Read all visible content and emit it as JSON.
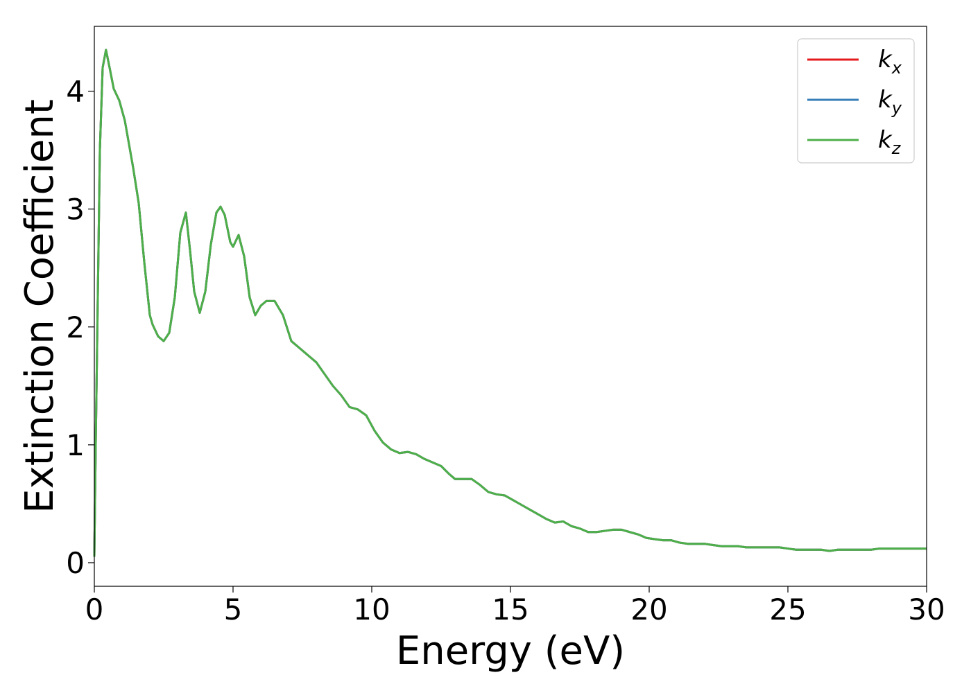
{
  "chart_data": {
    "type": "line",
    "xlabel": "Energy (eV)",
    "ylabel": "Extinction Coefficient",
    "xlim": [
      0,
      30
    ],
    "ylim": [
      -0.2,
      4.55
    ],
    "xticks": [
      "0",
      "5",
      "10",
      "15",
      "20",
      "25",
      "30"
    ],
    "yticks": [
      "0",
      "1",
      "2",
      "3",
      "4"
    ],
    "grid": false,
    "legend_position": "top-right",
    "legend": [
      {
        "base": "k",
        "sub": "x",
        "color": "#e41a1c"
      },
      {
        "base": "k",
        "sub": "y",
        "color": "#377eb8"
      },
      {
        "base": "k",
        "sub": "z",
        "color": "#4daf4a"
      }
    ],
    "x": [
      0,
      0.05,
      0.2,
      0.3,
      0.42,
      0.55,
      0.7,
      0.9,
      1.1,
      1.4,
      1.6,
      1.8,
      2.0,
      2.1,
      2.3,
      2.5,
      2.7,
      2.9,
      3.1,
      3.3,
      3.45,
      3.6,
      3.8,
      4.0,
      4.2,
      4.4,
      4.55,
      4.7,
      4.9,
      5.0,
      5.2,
      5.4,
      5.6,
      5.8,
      6.0,
      6.2,
      6.5,
      6.8,
      7.1,
      7.4,
      7.7,
      8.0,
      8.3,
      8.6,
      8.9,
      9.2,
      9.5,
      9.8,
      10.1,
      10.4,
      10.7,
      11.0,
      11.3,
      11.6,
      11.9,
      12.2,
      12.5,
      12.8,
      13.0,
      13.3,
      13.6,
      13.9,
      14.2,
      14.5,
      14.8,
      15.1,
      15.4,
      15.7,
      16.0,
      16.3,
      16.6,
      16.9,
      17.2,
      17.5,
      17.8,
      18.1,
      18.4,
      18.7,
      19.0,
      19.3,
      19.6,
      19.9,
      20.2,
      20.5,
      20.8,
      21.1,
      21.4,
      21.7,
      22.0,
      22.3,
      22.6,
      22.9,
      23.2,
      23.5,
      23.8,
      24.1,
      24.4,
      24.7,
      25.0,
      25.3,
      25.6,
      25.9,
      26.2,
      26.5,
      26.8,
      27.1,
      27.4,
      27.7,
      28.0,
      28.3,
      28.6,
      28.9,
      29.2,
      29.5,
      29.8,
      30.0
    ],
    "series": [
      {
        "name": "k_x",
        "color": "#e41a1c",
        "values": [
          0.05,
          1.0,
          3.5,
          4.2,
          4.35,
          4.2,
          4.02,
          3.92,
          3.75,
          3.35,
          3.05,
          2.55,
          2.1,
          2.02,
          1.92,
          1.88,
          1.95,
          2.25,
          2.8,
          2.97,
          2.65,
          2.3,
          2.12,
          2.3,
          2.7,
          2.97,
          3.02,
          2.95,
          2.72,
          2.68,
          2.78,
          2.6,
          2.25,
          2.1,
          2.18,
          2.22,
          2.22,
          2.1,
          1.88,
          1.82,
          1.76,
          1.7,
          1.6,
          1.5,
          1.42,
          1.32,
          1.3,
          1.25,
          1.12,
          1.02,
          0.96,
          0.93,
          0.94,
          0.92,
          0.88,
          0.85,
          0.82,
          0.75,
          0.71,
          0.71,
          0.71,
          0.66,
          0.6,
          0.58,
          0.57,
          0.53,
          0.49,
          0.45,
          0.41,
          0.37,
          0.34,
          0.35,
          0.31,
          0.29,
          0.26,
          0.26,
          0.27,
          0.28,
          0.28,
          0.26,
          0.24,
          0.21,
          0.2,
          0.19,
          0.19,
          0.17,
          0.16,
          0.16,
          0.16,
          0.15,
          0.14,
          0.14,
          0.14,
          0.13,
          0.13,
          0.13,
          0.13,
          0.13,
          0.12,
          0.11,
          0.11,
          0.11,
          0.11,
          0.1,
          0.11,
          0.11,
          0.11,
          0.11,
          0.11,
          0.12,
          0.12,
          0.12,
          0.12,
          0.12,
          0.12,
          0.12
        ]
      },
      {
        "name": "k_y",
        "color": "#377eb8",
        "values": [
          0.05,
          1.0,
          3.5,
          4.2,
          4.35,
          4.2,
          4.02,
          3.92,
          3.75,
          3.35,
          3.05,
          2.55,
          2.1,
          2.02,
          1.92,
          1.88,
          1.95,
          2.25,
          2.8,
          2.97,
          2.65,
          2.3,
          2.12,
          2.3,
          2.7,
          2.97,
          3.02,
          2.95,
          2.72,
          2.68,
          2.78,
          2.6,
          2.25,
          2.1,
          2.18,
          2.22,
          2.22,
          2.1,
          1.88,
          1.82,
          1.76,
          1.7,
          1.6,
          1.5,
          1.42,
          1.32,
          1.3,
          1.25,
          1.12,
          1.02,
          0.96,
          0.93,
          0.94,
          0.92,
          0.88,
          0.85,
          0.82,
          0.75,
          0.71,
          0.71,
          0.71,
          0.66,
          0.6,
          0.58,
          0.57,
          0.53,
          0.49,
          0.45,
          0.41,
          0.37,
          0.34,
          0.35,
          0.31,
          0.29,
          0.26,
          0.26,
          0.27,
          0.28,
          0.28,
          0.26,
          0.24,
          0.21,
          0.2,
          0.19,
          0.19,
          0.17,
          0.16,
          0.16,
          0.16,
          0.15,
          0.14,
          0.14,
          0.14,
          0.13,
          0.13,
          0.13,
          0.13,
          0.13,
          0.12,
          0.11,
          0.11,
          0.11,
          0.11,
          0.1,
          0.11,
          0.11,
          0.11,
          0.11,
          0.11,
          0.12,
          0.12,
          0.12,
          0.12,
          0.12,
          0.12,
          0.12
        ]
      },
      {
        "name": "k_z",
        "color": "#4daf4a",
        "values": [
          0.05,
          1.0,
          3.5,
          4.2,
          4.35,
          4.2,
          4.02,
          3.92,
          3.75,
          3.35,
          3.05,
          2.55,
          2.1,
          2.02,
          1.92,
          1.88,
          1.95,
          2.25,
          2.8,
          2.97,
          2.65,
          2.3,
          2.12,
          2.3,
          2.7,
          2.97,
          3.02,
          2.95,
          2.72,
          2.68,
          2.78,
          2.6,
          2.25,
          2.1,
          2.18,
          2.22,
          2.22,
          2.1,
          1.88,
          1.82,
          1.76,
          1.7,
          1.6,
          1.5,
          1.42,
          1.32,
          1.3,
          1.25,
          1.12,
          1.02,
          0.96,
          0.93,
          0.94,
          0.92,
          0.88,
          0.85,
          0.82,
          0.75,
          0.71,
          0.71,
          0.71,
          0.66,
          0.6,
          0.58,
          0.57,
          0.53,
          0.49,
          0.45,
          0.41,
          0.37,
          0.34,
          0.35,
          0.31,
          0.29,
          0.26,
          0.26,
          0.27,
          0.28,
          0.28,
          0.26,
          0.24,
          0.21,
          0.2,
          0.19,
          0.19,
          0.17,
          0.16,
          0.16,
          0.16,
          0.15,
          0.14,
          0.14,
          0.14,
          0.13,
          0.13,
          0.13,
          0.13,
          0.13,
          0.12,
          0.11,
          0.11,
          0.11,
          0.11,
          0.1,
          0.11,
          0.11,
          0.11,
          0.11,
          0.11,
          0.12,
          0.12,
          0.12,
          0.12,
          0.12,
          0.12,
          0.12
        ]
      }
    ]
  }
}
